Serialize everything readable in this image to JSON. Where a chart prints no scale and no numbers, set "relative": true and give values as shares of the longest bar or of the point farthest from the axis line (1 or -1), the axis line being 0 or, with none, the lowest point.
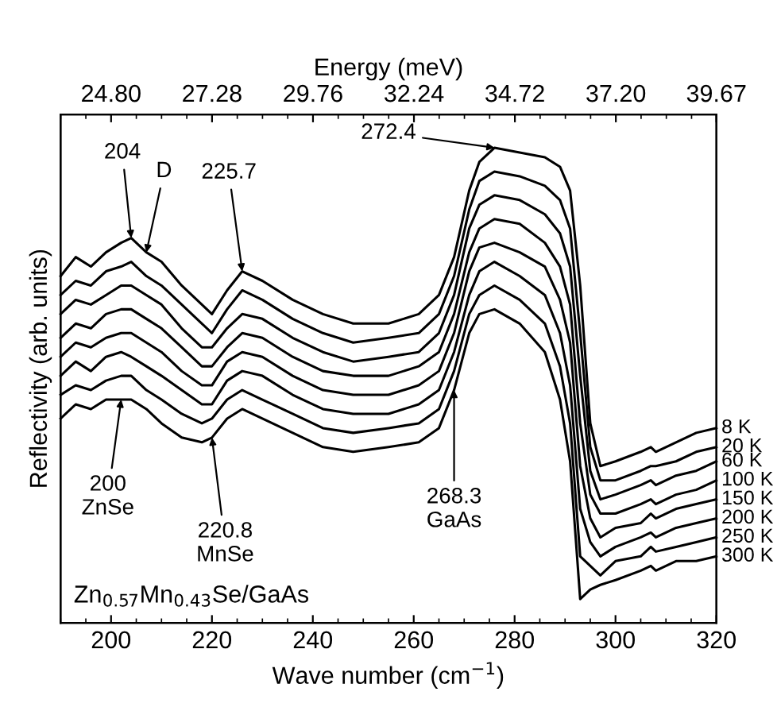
{
  "chart_data": {
    "type": "line",
    "relative": true,
    "xlabel": "Wave number (cm$^{−1}$)",
    "ylabel": "Reflectivity (arb. units)",
    "x2label": "Energy (meV)",
    "xlim": [
      190,
      320
    ],
    "xticks": [
      200,
      220,
      240,
      260,
      280,
      300,
      320
    ],
    "x2lim": [
      23.56,
      39.67
    ],
    "x2ticks": [
      {
        "value": 24.8,
        "label": "24.80"
      },
      {
        "value": 27.28,
        "label": "27.28"
      },
      {
        "value": 29.76,
        "label": "29.76"
      },
      {
        "value": 32.24,
        "label": "32.24"
      },
      {
        "value": 34.72,
        "label": "34.72"
      },
      {
        "value": 37.2,
        "label": "37.20"
      },
      {
        "value": 39.67,
        "label": "39.67"
      }
    ],
    "grid": false,
    "marker": "none",
    "line_style": "solid",
    "x": [
      190,
      193,
      196,
      199,
      202,
      204,
      207,
      210,
      214,
      218,
      220,
      223,
      226,
      230,
      236,
      242,
      248,
      255,
      261,
      265,
      268,
      271,
      273,
      276,
      281,
      286,
      289,
      291,
      293,
      295,
      297,
      300,
      305,
      307,
      308,
      312,
      316,
      320
    ],
    "series": [
      {
        "name": "8 K",
        "color": "#000000",
        "values": [
          0.73,
          0.77,
          0.75,
          0.78,
          0.8,
          0.81,
          0.78,
          0.76,
          0.71,
          0.67,
          0.65,
          0.7,
          0.74,
          0.72,
          0.68,
          0.65,
          0.63,
          0.63,
          0.65,
          0.69,
          0.77,
          0.91,
          0.97,
          1.0,
          0.99,
          0.98,
          0.96,
          0.91,
          0.71,
          0.42,
          0.33,
          0.34,
          0.36,
          0.37,
          0.36,
          0.38,
          0.4,
          0.41
        ]
      },
      {
        "name": "20 K",
        "color": "#000000",
        "values": [
          0.69,
          0.72,
          0.71,
          0.74,
          0.75,
          0.76,
          0.73,
          0.71,
          0.67,
          0.63,
          0.61,
          0.66,
          0.7,
          0.68,
          0.64,
          0.61,
          0.59,
          0.6,
          0.61,
          0.65,
          0.73,
          0.87,
          0.93,
          0.95,
          0.94,
          0.92,
          0.89,
          0.83,
          0.61,
          0.37,
          0.3,
          0.3,
          0.32,
          0.33,
          0.33,
          0.34,
          0.36,
          0.37
        ]
      },
      {
        "name": "60 K",
        "color": "#000000",
        "values": [
          0.65,
          0.68,
          0.67,
          0.69,
          0.71,
          0.71,
          0.69,
          0.67,
          0.62,
          0.58,
          0.58,
          0.62,
          0.65,
          0.64,
          0.6,
          0.57,
          0.55,
          0.56,
          0.57,
          0.61,
          0.69,
          0.83,
          0.88,
          0.9,
          0.89,
          0.86,
          0.82,
          0.75,
          0.52,
          0.32,
          0.26,
          0.27,
          0.29,
          0.3,
          0.29,
          0.31,
          0.32,
          0.34
        ]
      },
      {
        "name": "100 K",
        "color": "#000000",
        "values": [
          0.6,
          0.63,
          0.62,
          0.65,
          0.66,
          0.66,
          0.64,
          0.62,
          0.58,
          0.54,
          0.54,
          0.58,
          0.61,
          0.6,
          0.56,
          0.53,
          0.52,
          0.52,
          0.54,
          0.57,
          0.65,
          0.78,
          0.83,
          0.85,
          0.84,
          0.8,
          0.75,
          0.67,
          0.42,
          0.27,
          0.23,
          0.23,
          0.25,
          0.26,
          0.25,
          0.27,
          0.28,
          0.3
        ]
      },
      {
        "name": "150 K",
        "color": "#000000",
        "values": [
          0.56,
          0.59,
          0.58,
          0.6,
          0.61,
          0.61,
          0.59,
          0.57,
          0.53,
          0.5,
          0.5,
          0.55,
          0.57,
          0.56,
          0.52,
          0.49,
          0.48,
          0.48,
          0.5,
          0.53,
          0.61,
          0.74,
          0.79,
          0.8,
          0.78,
          0.75,
          0.68,
          0.59,
          0.33,
          0.22,
          0.18,
          0.2,
          0.21,
          0.23,
          0.22,
          0.24,
          0.25,
          0.26
        ]
      },
      {
        "name": "200 K",
        "color": "#000000",
        "values": [
          0.52,
          0.55,
          0.53,
          0.56,
          0.57,
          0.56,
          0.54,
          0.52,
          0.49,
          0.46,
          0.46,
          0.51,
          0.53,
          0.52,
          0.48,
          0.45,
          0.44,
          0.44,
          0.46,
          0.49,
          0.57,
          0.69,
          0.74,
          0.76,
          0.73,
          0.69,
          0.61,
          0.5,
          0.24,
          0.17,
          0.14,
          0.16,
          0.18,
          0.19,
          0.18,
          0.2,
          0.21,
          0.22
        ]
      },
      {
        "name": "250 K",
        "color": "#000000",
        "values": [
          0.48,
          0.5,
          0.49,
          0.51,
          0.52,
          0.52,
          0.49,
          0.47,
          0.44,
          0.42,
          0.43,
          0.47,
          0.49,
          0.47,
          0.44,
          0.41,
          0.4,
          0.41,
          0.42,
          0.45,
          0.53,
          0.65,
          0.69,
          0.71,
          0.68,
          0.63,
          0.54,
          0.42,
          0.14,
          0.12,
          0.1,
          0.13,
          0.14,
          0.16,
          0.15,
          0.16,
          0.17,
          0.18
        ]
      },
      {
        "name": "300 K",
        "color": "#000000",
        "values": [
          0.43,
          0.46,
          0.45,
          0.47,
          0.47,
          0.47,
          0.45,
          0.42,
          0.39,
          0.38,
          0.39,
          0.43,
          0.45,
          0.43,
          0.4,
          0.37,
          0.36,
          0.37,
          0.38,
          0.41,
          0.49,
          0.61,
          0.65,
          0.66,
          0.63,
          0.57,
          0.47,
          0.34,
          0.05,
          0.07,
          0.08,
          0.09,
          0.11,
          0.12,
          0.11,
          0.13,
          0.13,
          0.14
        ]
      }
    ],
    "annotations": [
      {
        "text": "204",
        "x": 204,
        "y": 0.81
      },
      {
        "text": "D",
        "x": 207,
        "y": 0.78
      },
      {
        "text": "225.7",
        "x": 226,
        "y": 0.74
      },
      {
        "text": "272.4",
        "x": 276,
        "y": 1.0
      },
      {
        "text": "200\nZnSe",
        "x": 202,
        "y": 0.47
      },
      {
        "text": "220.8\nMnSe",
        "x": 220,
        "y": 0.39
      },
      {
        "text": "268.3\nGaAs",
        "x": 268,
        "y": 0.49
      },
      "Zn$_{0.57}$Mn$_{0.43}$Se/GaAs"
    ]
  }
}
